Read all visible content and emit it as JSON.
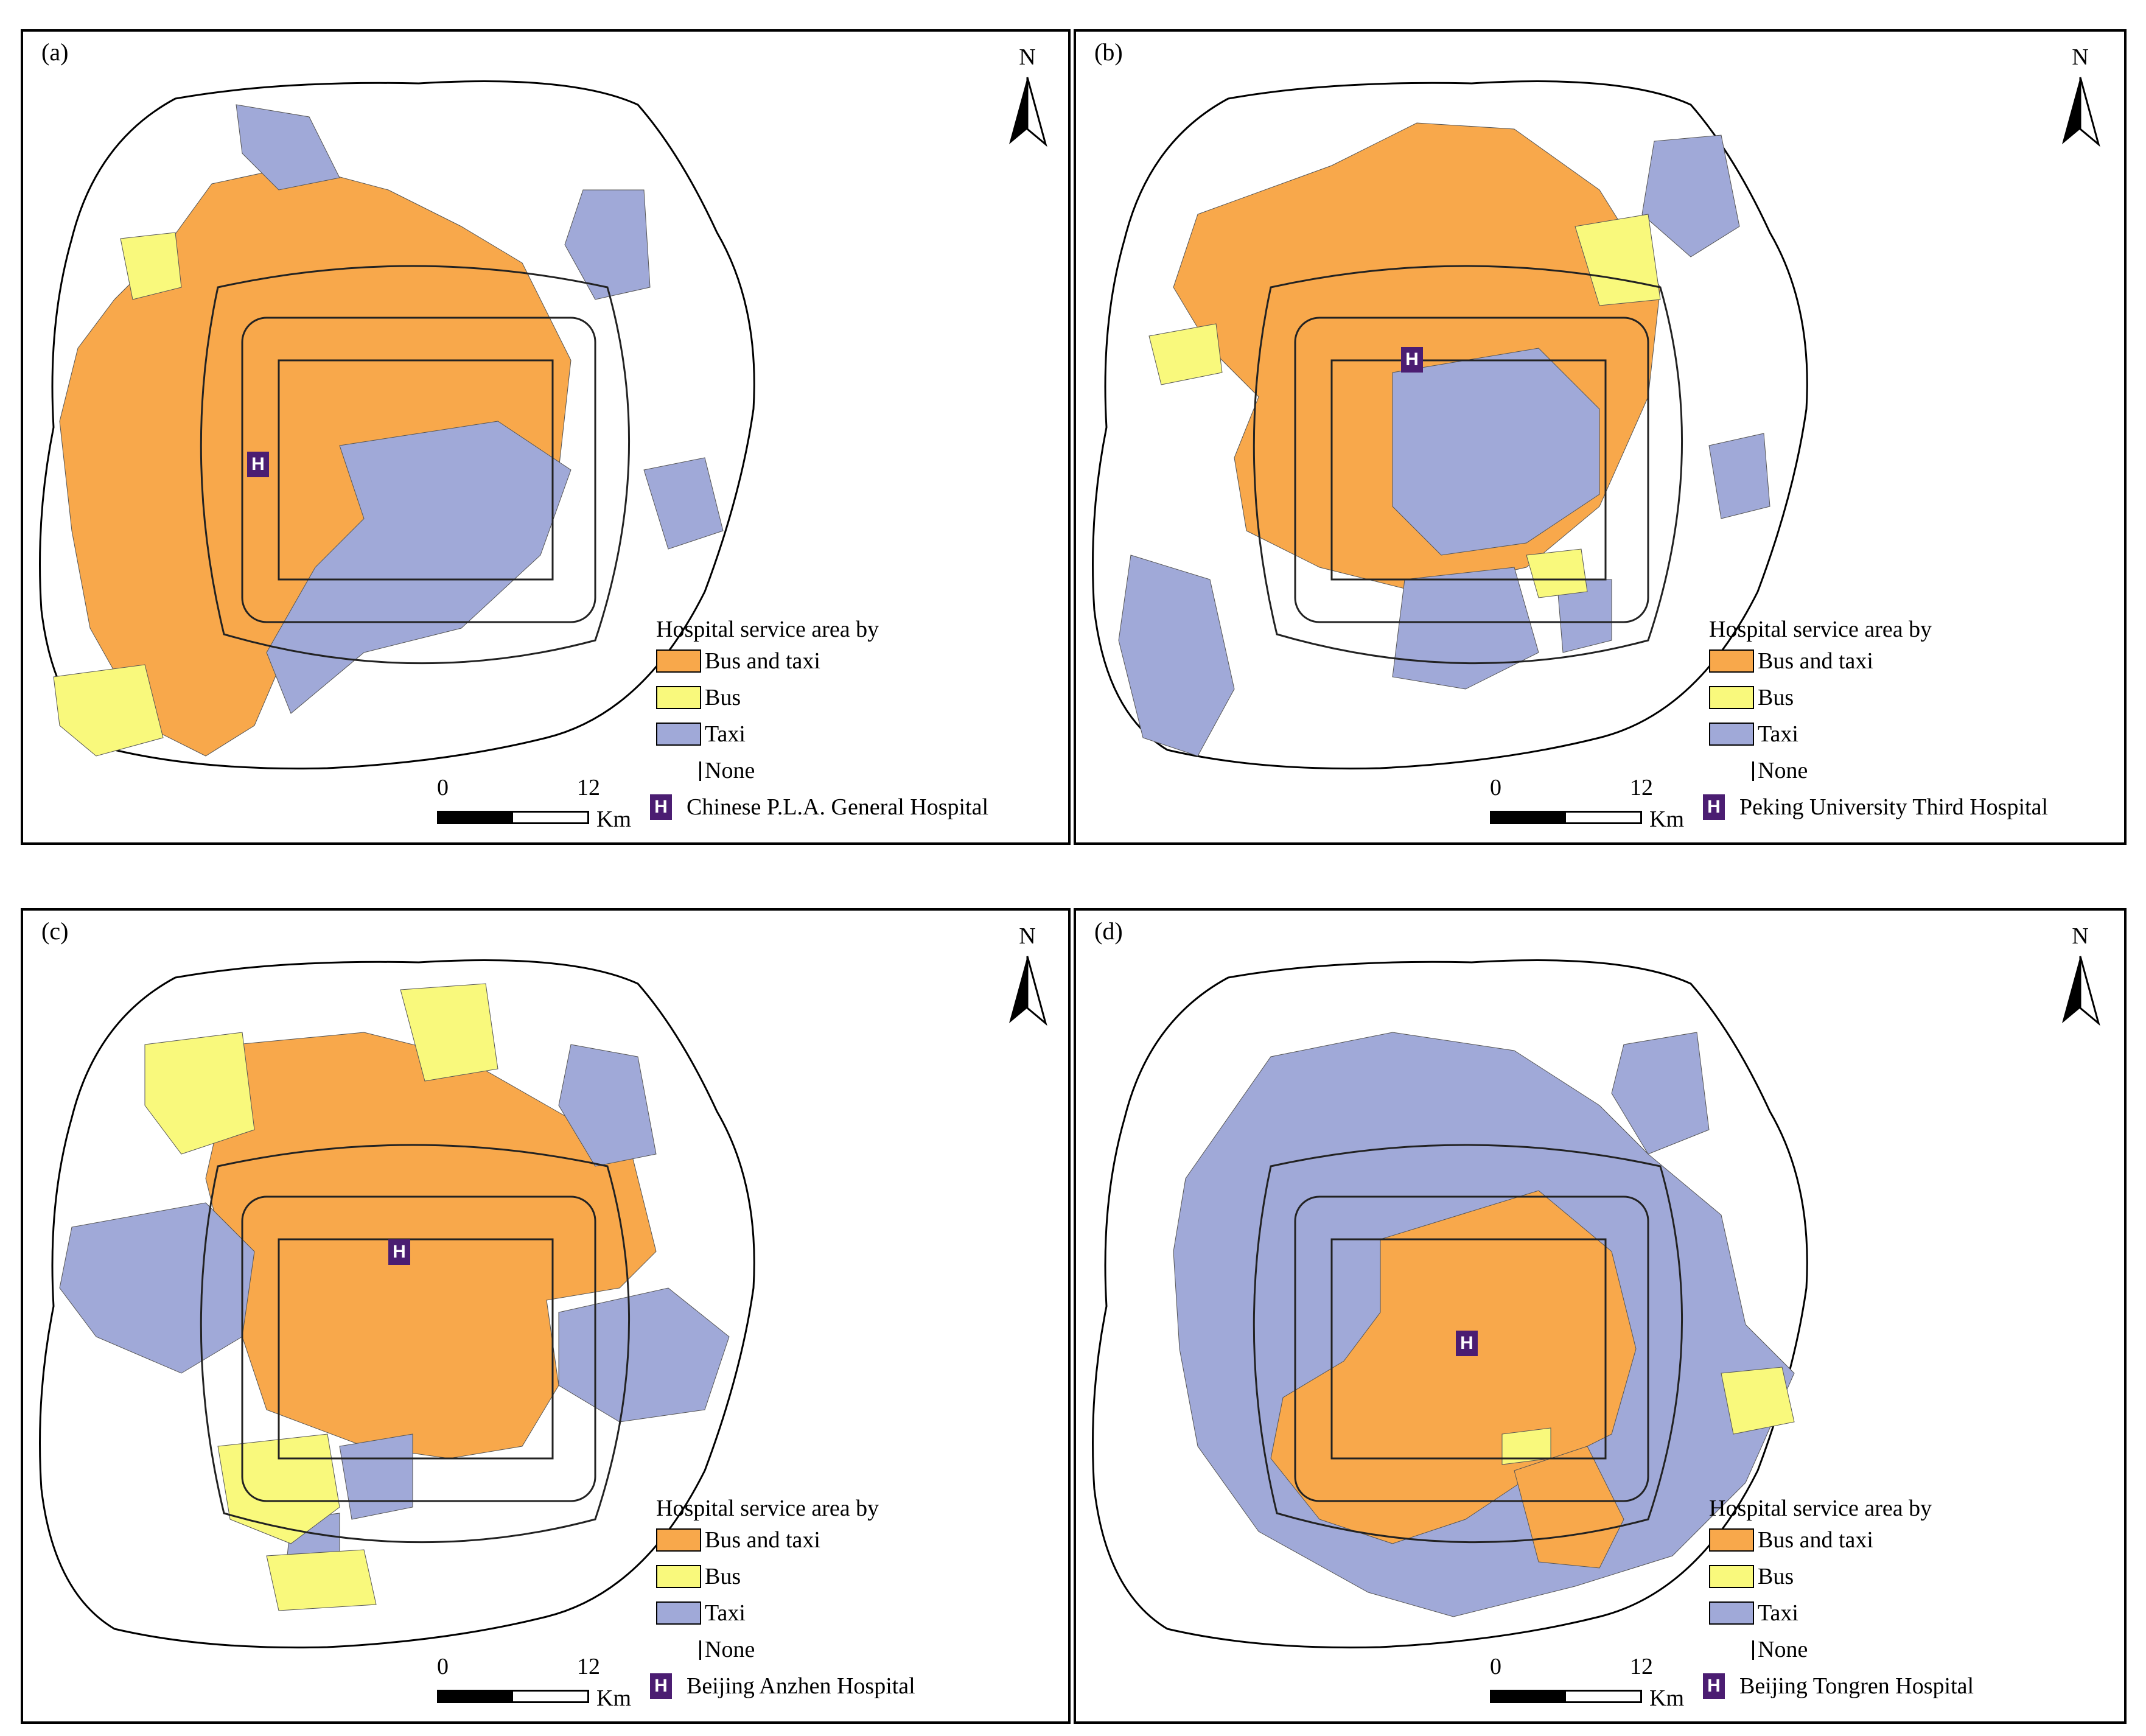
{
  "colors": {
    "bus_and_taxi": "#f8a84b",
    "bus": "#f9f97c",
    "taxi": "#a0a9d8",
    "none": "#ffffff",
    "hospital": "#4b1d72"
  },
  "north_label": "N",
  "scale": {
    "zero": "0",
    "twelve": "12",
    "unit": "Km"
  },
  "legend": {
    "title": "Hospital service area by",
    "bus_and_taxi": "Bus and taxi",
    "bus": "Bus",
    "taxi": "Taxi",
    "none": "None"
  },
  "hospital_icon_glyph": "H",
  "panels": [
    {
      "label": "(a)",
      "hospital": "Chinese P.L.A. General Hospital"
    },
    {
      "label": "(b)",
      "hospital": "Peking University Third Hospital"
    },
    {
      "label": "(c)",
      "hospital": "Beijing Anzhen Hospital"
    },
    {
      "label": "(d)",
      "hospital": "Beijing Tongren Hospital"
    }
  ]
}
